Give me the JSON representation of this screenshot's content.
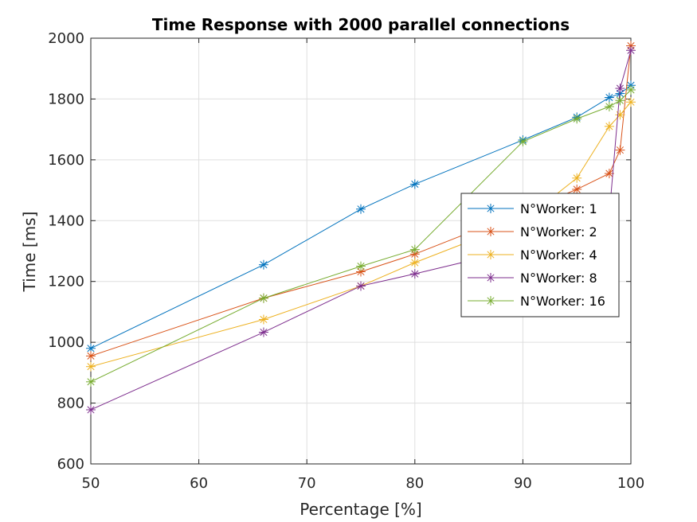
{
  "chart_data": {
    "type": "line",
    "title": "Time Response with 2000 parallel connections",
    "xlabel": "Percentage [%]",
    "ylabel": "Time [ms]",
    "xlim": [
      50,
      100
    ],
    "ylim": [
      600,
      2000
    ],
    "xticks": [
      50,
      60,
      70,
      80,
      90,
      100
    ],
    "yticks": [
      600,
      800,
      1000,
      1200,
      1400,
      1600,
      1800,
      2000
    ],
    "grid": true,
    "legend_position": "right",
    "x": [
      50,
      66,
      75,
      80,
      90,
      95,
      98,
      99,
      100
    ],
    "series": [
      {
        "name": "N°Worker: 1",
        "color": "#0072BD",
        "values": [
          980,
          1255,
          1438,
          1520,
          1665,
          1740,
          1805,
          1818,
          1845
        ]
      },
      {
        "name": "N°Worker: 2",
        "color": "#D95319",
        "values": [
          955,
          1145,
          1232,
          1290,
          1430,
          1503,
          1555,
          1632,
          1975
        ]
      },
      {
        "name": "N°Worker: 4",
        "color": "#EDB120",
        "values": [
          920,
          1075,
          1185,
          1262,
          1400,
          1540,
          1710,
          1748,
          1790
        ]
      },
      {
        "name": "N°Worker: 8",
        "color": "#7E2F8E",
        "values": [
          778,
          1033,
          1185,
          1225,
          1310,
          1380,
          1420,
          1835,
          1960
        ]
      },
      {
        "name": "N°Worker: 16",
        "color": "#77AC30",
        "values": [
          870,
          1145,
          1250,
          1305,
          1660,
          1735,
          1775,
          1795,
          1830
        ]
      }
    ]
  }
}
